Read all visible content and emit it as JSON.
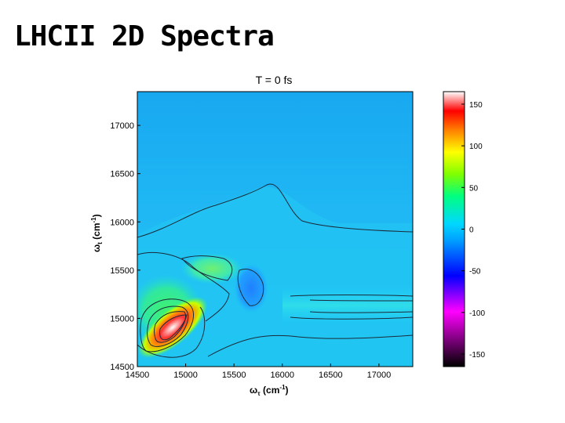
{
  "slide": {
    "title": "LHCII 2D Spectra"
  },
  "chart_data": {
    "type": "heatmap",
    "title": "T = 0 fs",
    "xlabel": "ωτ (cm⁻¹)",
    "ylabel": "ωt (cm⁻¹)",
    "xlabel_main": "ω",
    "xlabel_sub": "τ",
    "xlabel_unit": " (cm",
    "xlabel_exp": "-1",
    "xlabel_close": ")",
    "ylabel_main": "ω",
    "ylabel_sub": "t",
    "ylabel_unit": " (cm",
    "ylabel_exp": "-1",
    "ylabel_close": ")",
    "xlim": [
      14500,
      17350
    ],
    "ylim": [
      14500,
      17350
    ],
    "x_ticks": [
      14500,
      15000,
      15500,
      16000,
      16500,
      17000
    ],
    "y_ticks": [
      14500,
      15000,
      15500,
      16000,
      16500,
      17000
    ],
    "colorbar": {
      "range": [
        -165,
        165
      ],
      "ticks": [
        150,
        100,
        50,
        0,
        -50,
        -100,
        -150
      ]
    },
    "features": [
      {
        "label": "diagonal peak",
        "x": 14850,
        "y": 14870,
        "value": 155
      },
      {
        "label": "lower diagonal region",
        "x": 14800,
        "y": 15100,
        "value": 55
      },
      {
        "label": "cross-peak region",
        "x": 15450,
        "y": 15500,
        "value": 40
      },
      {
        "label": "negative feature",
        "x": 15750,
        "y": 15300,
        "value": -8
      },
      {
        "label": "band",
        "x": 16700,
        "y": 15150,
        "value": 22
      }
    ]
  }
}
